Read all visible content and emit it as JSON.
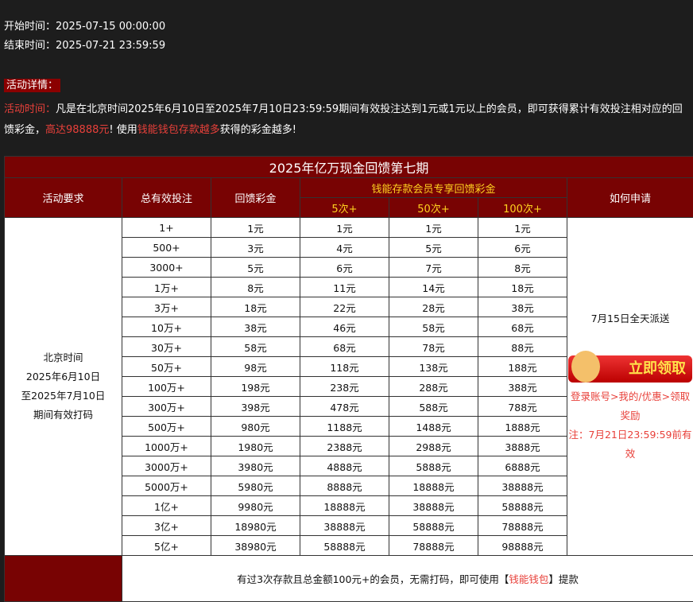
{
  "header": {
    "start_label": "开始时间：",
    "start": "2025-07-15 00:00:00",
    "end_label": "结束时间：",
    "end": "2025-07-21 23:59:59"
  },
  "details": {
    "tag": "活动详情：",
    "time_label": "活动时间：",
    "text1": "凡是在北京时间2025年6月10日至2025年7月10日23:59:59期间有效投注达到1元或1元以上的会员，即可获得累计有效投注相对应的回馈彩金，",
    "highlight1": "高达98888元",
    "text2": "! 使用",
    "highlight2": "钱能钱包存款越多",
    "text3": "获得的彩金越多!"
  },
  "table": {
    "title": "2025年亿万现金回馈第七期",
    "headers": {
      "req": "活动要求",
      "bet": "总有效投注",
      "bonus": "回馈彩金",
      "vip": "钱能存款会员专享回馈彩金",
      "c5": "5次+",
      "c50": "50次+",
      "c100": "100次+",
      "apply": "如何申请"
    },
    "requirement": [
      "北京时间",
      "2025年6月10日",
      "至2025年7月10日",
      "期间有效打码"
    ],
    "rows": [
      [
        "1+",
        "1元",
        "1元",
        "1元",
        "1元"
      ],
      [
        "500+",
        "3元",
        "4元",
        "5元",
        "6元"
      ],
      [
        "3000+",
        "5元",
        "6元",
        "7元",
        "8元"
      ],
      [
        "1万+",
        "8元",
        "11元",
        "14元",
        "18元"
      ],
      [
        "3万+",
        "18元",
        "22元",
        "28元",
        "38元"
      ],
      [
        "10万+",
        "38元",
        "46元",
        "58元",
        "68元"
      ],
      [
        "30万+",
        "58元",
        "68元",
        "78元",
        "88元"
      ],
      [
        "50万+",
        "98元",
        "118元",
        "138元",
        "188元"
      ],
      [
        "100万+",
        "198元",
        "238元",
        "288元",
        "388元"
      ],
      [
        "300万+",
        "398元",
        "478元",
        "588元",
        "788元"
      ],
      [
        "500万+",
        "980元",
        "1188元",
        "1488元",
        "1888元"
      ],
      [
        "1000万+",
        "1980元",
        "2388元",
        "2988元",
        "3888元"
      ],
      [
        "3000万+",
        "3980元",
        "4888元",
        "5888元",
        "6888元"
      ],
      [
        "5000万+",
        "5980元",
        "8888元",
        "18888元",
        "38888元"
      ],
      [
        "1亿+",
        "9980元",
        "18888元",
        "38888元",
        "58888元"
      ],
      [
        "3亿+",
        "18980元",
        "38888元",
        "58888元",
        "78888元"
      ],
      [
        "5亿+",
        "38980元",
        "58888元",
        "78888元",
        "98888元"
      ]
    ],
    "apply": {
      "date": "7月15日全天派送",
      "button": "立即领取",
      "path": "登录账号>我的/优惠>领取奖励",
      "note": "注：7月21日23:59:59前有效"
    },
    "footer": {
      "text1": "有过3次存款且总金额100元+的会员，无需打码，即可使用【",
      "link": "钱能钱包",
      "text2": "】提款"
    }
  }
}
